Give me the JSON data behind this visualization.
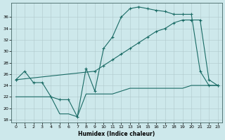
{
  "xlabel": "Humidex (Indice chaleur)",
  "bg_color": "#cde8eb",
  "grid_color": "#b0c8cc",
  "line_color": "#1a6b65",
  "line1_x": [
    0,
    1,
    2,
    3,
    4,
    5,
    6,
    7,
    8,
    9,
    10,
    11,
    12,
    13,
    14,
    15,
    16,
    17,
    18,
    19,
    20,
    21,
    22,
    23
  ],
  "line1_y": [
    25.0,
    26.5,
    24.5,
    24.5,
    22.0,
    21.5,
    21.5,
    18.5,
    27.0,
    23.0,
    30.5,
    32.5,
    36.0,
    37.5,
    37.8,
    37.5,
    37.2,
    37.0,
    36.5,
    36.5,
    36.5,
    26.5,
    24.0,
    24.0
  ],
  "line2_x": [
    0,
    9,
    10,
    11,
    12,
    13,
    14,
    15,
    16,
    17,
    18,
    19,
    20,
    21,
    22,
    23
  ],
  "line2_y": [
    25.0,
    26.5,
    27.5,
    28.5,
    29.5,
    30.5,
    31.5,
    32.5,
    33.5,
    34.0,
    35.0,
    35.5,
    35.5,
    35.5,
    25.0,
    24.0
  ],
  "line3_x": [
    0,
    1,
    2,
    3,
    4,
    5,
    6,
    7,
    8,
    9,
    10,
    11,
    12,
    13,
    14,
    15,
    16,
    17,
    18,
    19,
    20,
    21,
    22,
    23
  ],
  "line3_y": [
    22.0,
    22.0,
    22.0,
    22.0,
    22.0,
    19.0,
    19.0,
    18.5,
    22.5,
    22.5,
    22.5,
    22.5,
    23.0,
    23.5,
    23.5,
    23.5,
    23.5,
    23.5,
    23.5,
    23.5,
    24.0,
    24.0,
    24.0,
    24.0
  ],
  "ylim": [
    17.5,
    38.5
  ],
  "xlim": [
    -0.5,
    23.5
  ],
  "yticks": [
    18,
    20,
    22,
    24,
    26,
    28,
    30,
    32,
    34,
    36
  ],
  "xticks": [
    0,
    1,
    2,
    3,
    4,
    5,
    6,
    7,
    8,
    9,
    10,
    11,
    12,
    13,
    14,
    15,
    16,
    17,
    18,
    19,
    20,
    21,
    22,
    23
  ],
  "xlabel_fontsize": 5.5,
  "tick_fontsize": 4.5
}
